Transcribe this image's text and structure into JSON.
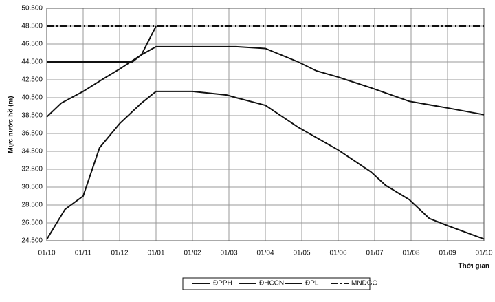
{
  "chart_data": {
    "type": "line",
    "y_label": "Mực nước hồ (m)",
    "x_label": "Thời gian",
    "xlim": [
      0,
      12
    ],
    "xticks": [
      {
        "value": 0,
        "label": "01/10"
      },
      {
        "value": 1,
        "label": "01/11"
      },
      {
        "value": 2,
        "label": "01/12"
      },
      {
        "value": 3,
        "label": "01/01"
      },
      {
        "value": 4,
        "label": "01/02"
      },
      {
        "value": 5,
        "label": "01/03"
      },
      {
        "value": 6,
        "label": "01/04"
      },
      {
        "value": 7,
        "label": "01/05"
      },
      {
        "value": 8,
        "label": "01/06"
      },
      {
        "value": 9,
        "label": "01/07"
      },
      {
        "value": 10,
        "label": "01/08"
      },
      {
        "value": 11,
        "label": "01/09"
      },
      {
        "value": 12,
        "label": "01/10"
      }
    ],
    "ylim": [
      24.5,
      50.5
    ],
    "yticks": [
      {
        "value": 24.5,
        "label": "24.500"
      },
      {
        "value": 26.5,
        "label": "26.500"
      },
      {
        "value": 28.5,
        "label": "28.500"
      },
      {
        "value": 30.5,
        "label": "30.500"
      },
      {
        "value": 32.5,
        "label": "32.500"
      },
      {
        "value": 34.5,
        "label": "34.500"
      },
      {
        "value": 36.5,
        "label": "36.500"
      },
      {
        "value": 38.5,
        "label": "38.500"
      },
      {
        "value": 40.5,
        "label": "40.500"
      },
      {
        "value": 42.5,
        "label": "42.500"
      },
      {
        "value": 44.5,
        "label": "44.500"
      },
      {
        "value": 46.5,
        "label": "46.500"
      },
      {
        "value": 48.5,
        "label": "48.500"
      },
      {
        "value": 50.5,
        "label": "50.500"
      }
    ],
    "grid": true,
    "series": [
      {
        "name": "ĐPPH",
        "color": "#111111",
        "dash": "none",
        "x": [
          0,
          0.5,
          1,
          1.45,
          2,
          2.6,
          3,
          4,
          4.94,
          5.2,
          6,
          6.9,
          8,
          8.9,
          9.3,
          9.95,
          10.5,
          11,
          12
        ],
        "values": [
          24.65,
          28.0,
          29.5,
          34.9,
          37.6,
          39.9,
          41.2,
          41.2,
          40.8,
          40.5,
          39.65,
          37.2,
          34.65,
          32.2,
          30.7,
          29.1,
          27.0,
          26.2,
          24.7
        ]
      },
      {
        "name": "ĐHCCN",
        "color": "#111111",
        "dash": "none",
        "x": [
          0,
          0.4,
          1,
          1.55,
          2,
          2.6,
          3,
          5.2,
          6,
          6.9,
          7.4,
          8,
          8.9,
          9.95,
          11,
          12
        ],
        "values": [
          38.35,
          39.9,
          41.2,
          42.6,
          43.7,
          45.3,
          46.2,
          46.2,
          46.0,
          44.5,
          43.5,
          42.8,
          41.6,
          40.1,
          39.35,
          38.6
        ]
      },
      {
        "name": "ĐPL",
        "color": "#111111",
        "dash": "none",
        "x": [
          0,
          2.35,
          2.6,
          3
        ],
        "values": [
          44.5,
          44.5,
          45.3,
          48.5
        ]
      },
      {
        "name": "MNDGC",
        "color": "#111111",
        "dash": "10 4 2 4",
        "x": [
          0,
          12
        ],
        "values": [
          48.5,
          48.5
        ]
      }
    ]
  }
}
